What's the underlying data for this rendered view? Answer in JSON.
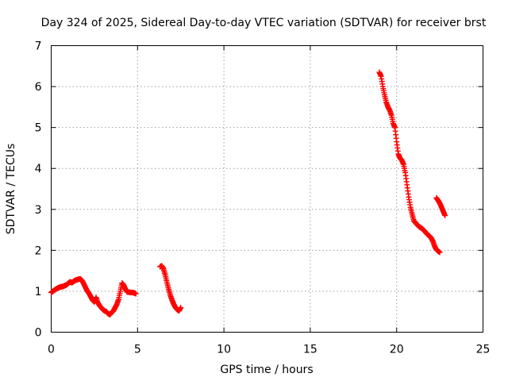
{
  "chart_data": {
    "type": "scatter",
    "title": "Day 324 of 2025, Sidereal Day-to-day VTEC variation (SDTVAR) for receiver brst",
    "xlabel": "GPS time / hours",
    "ylabel": "SDTVAR / TECUs",
    "xlim": [
      0,
      25
    ],
    "ylim": [
      0,
      7
    ],
    "xticks": [
      0,
      5,
      10,
      15,
      20,
      25
    ],
    "yticks": [
      0,
      1,
      2,
      3,
      4,
      5,
      6,
      7
    ],
    "grid": true,
    "marker": "plus",
    "colors": {
      "series": "#ff0000",
      "grid": "#a0a0a0",
      "frame": "#000000"
    },
    "segments": [
      {
        "x": [
          0.0,
          0.1,
          0.2,
          0.3,
          0.4,
          0.5,
          0.6,
          0.7,
          0.8,
          0.9,
          1.0,
          1.1,
          1.2,
          1.3,
          1.4,
          1.5,
          1.6,
          1.7,
          1.8,
          1.9,
          2.0,
          2.1,
          2.2,
          2.3,
          2.4,
          2.5,
          2.6,
          2.7,
          2.8,
          2.9,
          3.0,
          3.1,
          3.2,
          3.3,
          3.4,
          3.5,
          3.6,
          3.7,
          3.8,
          3.9,
          4.0,
          4.1,
          4.2,
          4.3,
          4.4,
          4.5,
          4.6,
          4.7,
          4.8,
          4.9
        ],
        "y": [
          0.97,
          1.0,
          1.03,
          1.06,
          1.08,
          1.1,
          1.11,
          1.12,
          1.14,
          1.16,
          1.2,
          1.23,
          1.21,
          1.24,
          1.27,
          1.28,
          1.3,
          1.3,
          1.25,
          1.17,
          1.08,
          1.0,
          0.94,
          0.86,
          0.78,
          0.74,
          0.85,
          0.72,
          0.65,
          0.6,
          0.55,
          0.52,
          0.5,
          0.45,
          0.43,
          0.48,
          0.52,
          0.6,
          0.68,
          0.8,
          1.0,
          1.2,
          1.15,
          1.05,
          0.98,
          0.98,
          0.97,
          0.97,
          0.96,
          0.94
        ]
      },
      {
        "x": [
          6.3,
          6.4,
          6.5,
          6.6,
          6.7,
          6.8,
          6.9,
          7.0,
          7.1,
          7.2,
          7.3,
          7.4,
          7.5
        ],
        "y": [
          1.6,
          1.62,
          1.55,
          1.4,
          1.22,
          1.05,
          0.9,
          0.78,
          0.68,
          0.6,
          0.55,
          0.52,
          0.6
        ]
      },
      {
        "x": [
          19.0,
          19.1,
          19.2,
          19.3,
          19.4,
          19.5,
          19.6,
          19.7,
          19.8,
          19.9,
          20.0,
          20.1,
          20.2,
          20.3,
          20.4,
          20.5,
          20.6,
          20.7,
          20.8,
          20.9,
          21.0,
          21.1,
          21.2,
          21.3,
          21.4,
          21.5,
          21.6,
          21.7,
          21.8,
          21.9,
          22.0,
          22.1,
          22.2,
          22.3,
          22.4,
          22.5
        ],
        "y": [
          6.35,
          6.25,
          6.0,
          5.8,
          5.62,
          5.5,
          5.42,
          5.3,
          5.1,
          5.0,
          4.65,
          4.35,
          4.25,
          4.2,
          4.1,
          3.9,
          3.6,
          3.3,
          3.05,
          2.88,
          2.72,
          2.67,
          2.62,
          2.58,
          2.55,
          2.52,
          2.48,
          2.43,
          2.38,
          2.35,
          2.3,
          2.22,
          2.1,
          2.02,
          1.98,
          1.95
        ]
      },
      {
        "x": [
          22.3,
          22.4,
          22.5,
          22.6,
          22.7,
          22.8
        ],
        "y": [
          3.28,
          3.22,
          3.15,
          3.05,
          2.95,
          2.85
        ]
      }
    ]
  }
}
